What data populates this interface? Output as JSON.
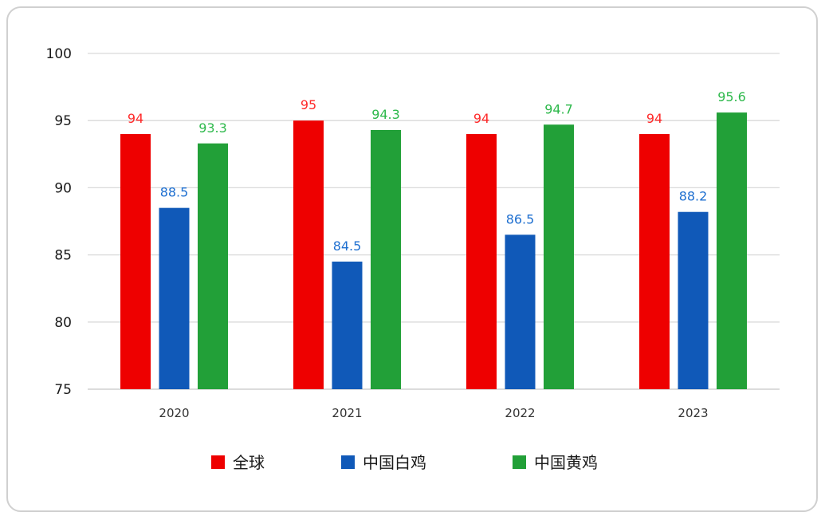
{
  "chart_data": {
    "type": "bar",
    "categories": [
      "2020",
      "2021",
      "2022",
      "2023"
    ],
    "series": [
      {
        "name": "全球",
        "color": "#ee0000",
        "label_color": "#ff2a2a",
        "values": [
          94,
          95,
          94,
          94
        ]
      },
      {
        "name": "中国白鸡",
        "color": "#1059b8",
        "label_color": "#1e6fd0",
        "values": [
          88.5,
          84.5,
          86.5,
          88.2
        ]
      },
      {
        "name": "中国黄鸡",
        "color": "#22a038",
        "label_color": "#2cb84a",
        "values": [
          93.3,
          94.3,
          94.7,
          95.6
        ]
      }
    ],
    "ylim": [
      75,
      100
    ],
    "yticks": [
      75,
      80,
      85,
      90,
      95,
      100
    ],
    "grid": true,
    "legend": "bottom-center",
    "title": "",
    "xlabel": "",
    "ylabel": ""
  }
}
